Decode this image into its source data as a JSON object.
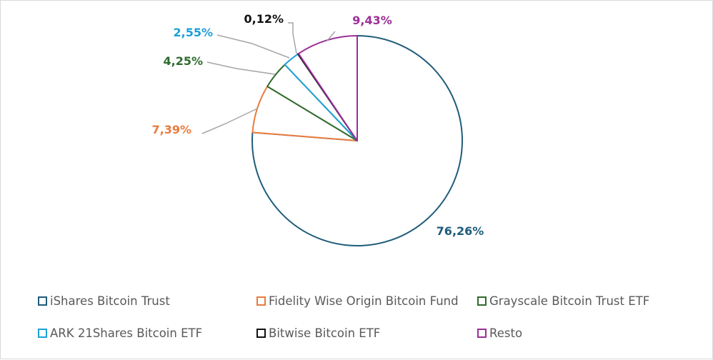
{
  "chart_data": {
    "type": "pie",
    "slices": [
      {
        "name": "iShares Bitcoin Trust",
        "value": 76.26,
        "label": "76,26%",
        "color": "#1f5c7a"
      },
      {
        "name": "Fidelity Wise Origin Bitcoin Fund",
        "value": 7.39,
        "label": "7,39%",
        "color": "#e97b3d"
      },
      {
        "name": "Grayscale Bitcoin Trust ETF",
        "value": 4.25,
        "label": "4,25%",
        "color": "#2e6b2e"
      },
      {
        "name": "ARK 21Shares Bitcoin ETF",
        "value": 2.55,
        "label": "2,55%",
        "color": "#1ea0d6"
      },
      {
        "name": "Bitwise Bitcoin ETF",
        "value": 0.12,
        "label": "0,12%",
        "color": "#111111"
      },
      {
        "name": "Resto",
        "value": 9.43,
        "label": "9,43%",
        "color": "#9b2f98"
      }
    ],
    "legend_position": "bottom",
    "slice_fill": "#ffffff",
    "leader_line_color": "#a6a6a6"
  }
}
